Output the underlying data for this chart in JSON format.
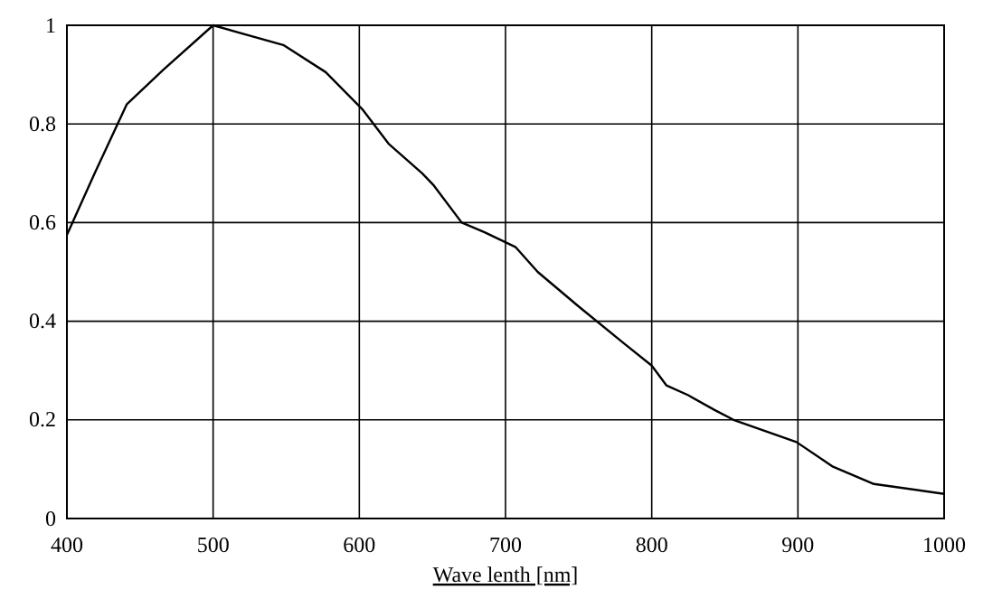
{
  "chart_data": {
    "type": "line",
    "xlabel": "Wave lenth [nm]",
    "x": [
      400,
      419,
      441,
      466,
      500,
      548,
      577,
      602,
      620,
      643,
      651,
      670,
      686,
      707,
      722,
      750,
      781,
      800,
      810,
      825,
      843,
      856,
      899,
      924,
      952,
      1000
    ],
    "series": [
      {
        "color": "#000000",
        "values": [
          0.575,
          0.7,
          0.84,
          0.91,
          1.0,
          0.96,
          0.905,
          0.83,
          0.76,
          0.7,
          0.675,
          0.6,
          0.58,
          0.55,
          0.5,
          0.43,
          0.355,
          0.31,
          0.27,
          0.25,
          0.22,
          0.2,
          0.155,
          0.105,
          0.07,
          0.05
        ]
      }
    ],
    "xlim": [
      400,
      1000
    ],
    "xticks": [
      400,
      500,
      600,
      700,
      800,
      900,
      1000
    ],
    "ylim": [
      0,
      1
    ],
    "yticks": [
      0,
      0.2,
      0.4,
      0.6,
      0.8,
      1
    ],
    "grid": true,
    "marker": "none",
    "line_style": "solid"
  }
}
